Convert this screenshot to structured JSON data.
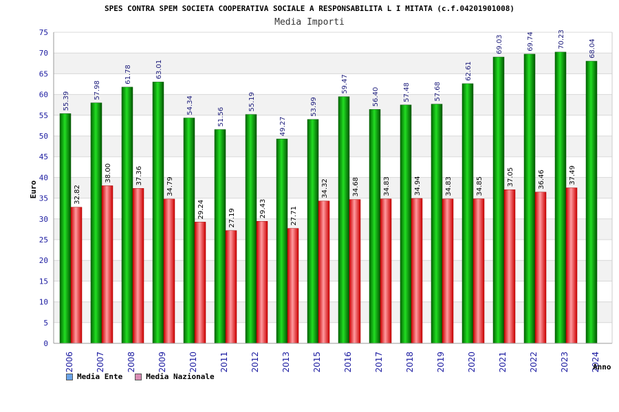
{
  "chart_data": {
    "type": "bar",
    "title": "SPES CONTRA SPEM SOCIETA COOPERATIVA SOCIALE A RESPONSABILITA L I MITATA (c.f.04201901008)",
    "subtitle": "Media Importi",
    "xlabel": "Anno",
    "ylabel": "Euro",
    "ylim": [
      0,
      75
    ],
    "ytick_step": 5,
    "grid": true,
    "legend_position": "bottom-left",
    "categories": [
      "2006",
      "2007",
      "2008",
      "2009",
      "2010",
      "2011",
      "2012",
      "2013",
      "2015",
      "2016",
      "2017",
      "2018",
      "2019",
      "2020",
      "2021",
      "2022",
      "2023",
      "2024"
    ],
    "series": [
      {
        "name": "Media Ente",
        "color": "#11b811",
        "legend_color": "#6aa4e8",
        "values": [
          55.39,
          57.98,
          61.78,
          63.01,
          54.34,
          51.56,
          55.19,
          49.27,
          53.99,
          59.47,
          56.4,
          57.48,
          57.68,
          62.61,
          69.03,
          69.74,
          70.23,
          68.04
        ],
        "labels": [
          "55.39",
          "57.98",
          "61.78",
          "63.01",
          "54.34",
          "51.56",
          "55.19",
          "49.27",
          "53.99",
          "59.47",
          "56.40",
          "57.48",
          "57.68",
          "62.61",
          "69.03",
          "69.74",
          "70.23",
          "68.04"
        ]
      },
      {
        "name": "Media Nazionale",
        "color": "#e8303a",
        "legend_color": "#d98cb4",
        "values": [
          32.82,
          38.0,
          37.36,
          34.79,
          29.24,
          27.19,
          29.43,
          27.71,
          34.32,
          34.68,
          34.83,
          34.94,
          34.83,
          34.85,
          37.05,
          36.46,
          37.49,
          null
        ],
        "labels": [
          "32.82",
          "38.00",
          "37.36",
          "34.79",
          "29.24",
          "27.19",
          "29.43",
          "27.71",
          "34.32",
          "34.68",
          "34.83",
          "34.94",
          "34.83",
          "34.85",
          "37.05",
          "36.46",
          "37.49",
          null
        ]
      }
    ]
  }
}
